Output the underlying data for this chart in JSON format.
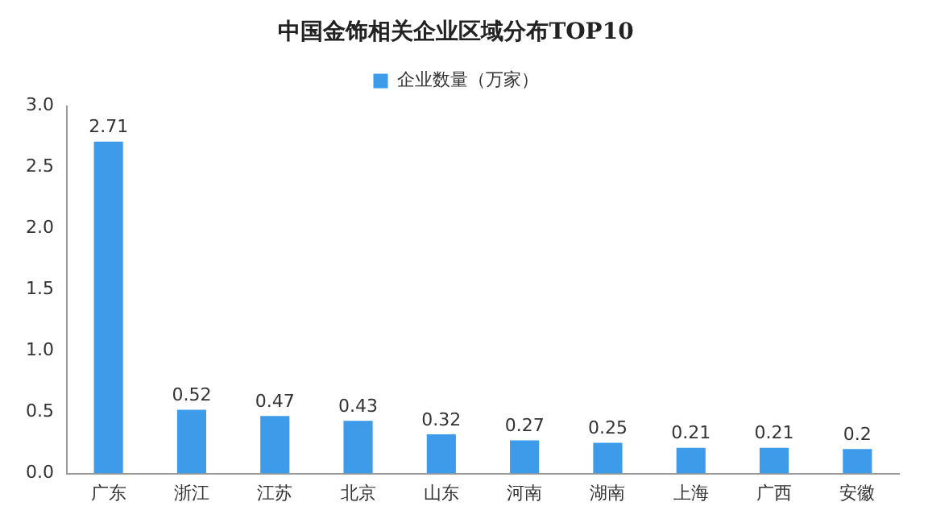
{
  "chart_data": {
    "type": "bar",
    "title": "中国金饰相关企业区域分布TOP10",
    "categories": [
      "广东",
      "浙江",
      "江苏",
      "北京",
      "山东",
      "河南",
      "湖南",
      "上海",
      "广西",
      "安徽"
    ],
    "series": [
      {
        "name": "企业数量（万家）",
        "color": "#3d9be9",
        "values": [
          2.71,
          0.52,
          0.47,
          0.43,
          0.32,
          0.27,
          0.25,
          0.21,
          0.21,
          0.2
        ]
      }
    ],
    "ylim": [
      0,
      3
    ],
    "yticks": [
      {
        "value": 0,
        "label": "0.0"
      },
      {
        "value": 0.5,
        "label": "0.5"
      },
      {
        "value": 1,
        "label": "1.0"
      },
      {
        "value": 1.5,
        "label": "1.5"
      },
      {
        "value": 2,
        "label": "2.0"
      },
      {
        "value": 2.5,
        "label": "2.5"
      },
      {
        "value": 3,
        "label": "3.0"
      }
    ],
    "grid": false,
    "legend": "top",
    "data_labels": true
  }
}
